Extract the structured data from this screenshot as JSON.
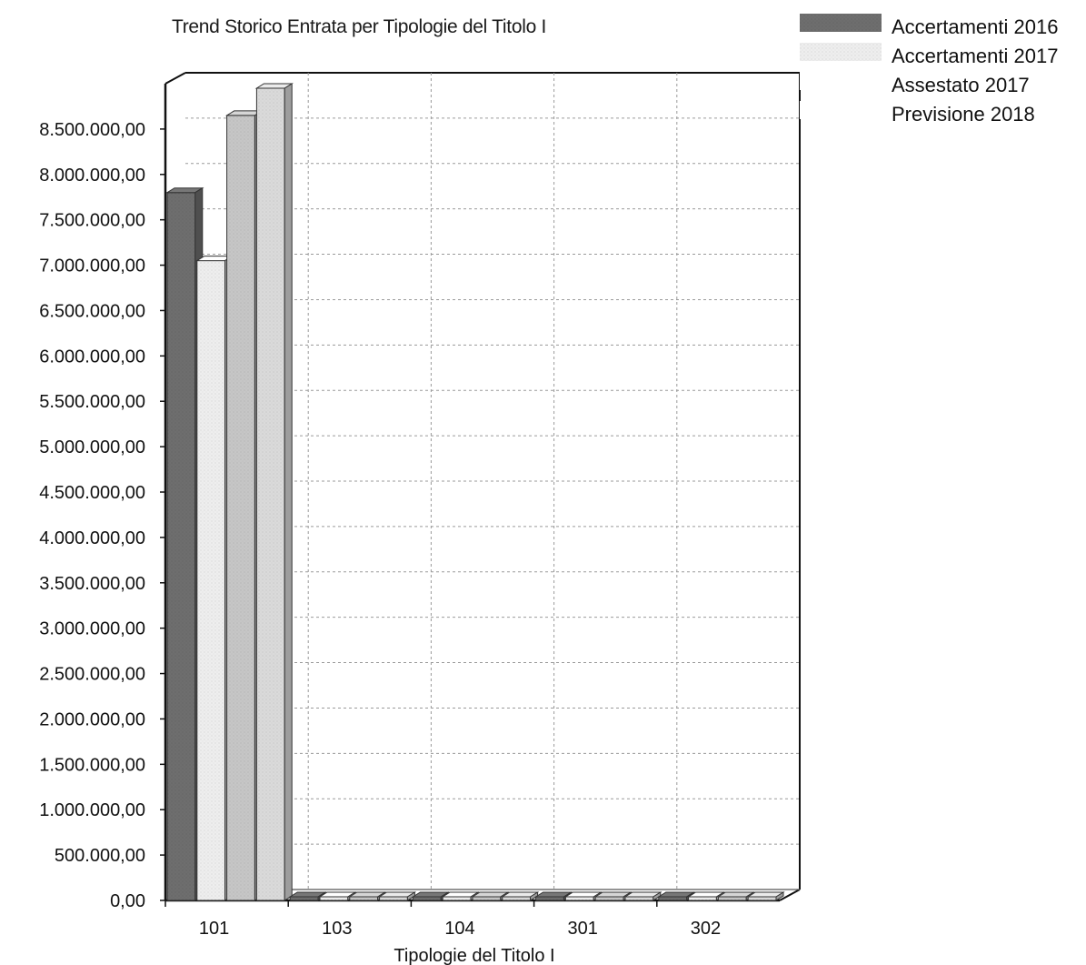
{
  "chart_data": {
    "type": "bar",
    "title": "Trend Storico Entrata per Tipologie del Titolo I",
    "xlabel": "Tipologie del Titolo I",
    "ylabel": "",
    "categories": [
      "101",
      "103",
      "104",
      "301",
      "302"
    ],
    "y_ticks": [
      "0,00",
      "500.000,00",
      "1.000.000,00",
      "1.500.000,00",
      "2.000.000,00",
      "2.500.000,00",
      "3.000.000,00",
      "3.500.000,00",
      "4.000.000,00",
      "4.500.000,00",
      "5.000.000,00",
      "5.500.000,00",
      "6.000.000,00",
      "6.500.000,00",
      "7.000.000,00",
      "7.500.000,00",
      "8.000.000,00",
      "8.500.000,00"
    ],
    "ylim": [
      0,
      9000000
    ],
    "grid": true,
    "legend_position": "top-right",
    "series": [
      {
        "name": "Accertamenti 2016",
        "color": "#6e6e6e",
        "values": [
          7800000,
          0,
          0,
          0,
          0
        ]
      },
      {
        "name": "Accertamenti 2017",
        "color": "#eeeeee",
        "values": [
          7050000,
          0,
          0,
          0,
          0
        ]
      },
      {
        "name": "Assestato 2017",
        "color": "#c6c6c6",
        "values": [
          8650000,
          0,
          0,
          0,
          0
        ]
      },
      {
        "name": "Previsione 2018",
        "color": "#dadada",
        "values": [
          8950000,
          0,
          0,
          0,
          0
        ]
      }
    ]
  }
}
